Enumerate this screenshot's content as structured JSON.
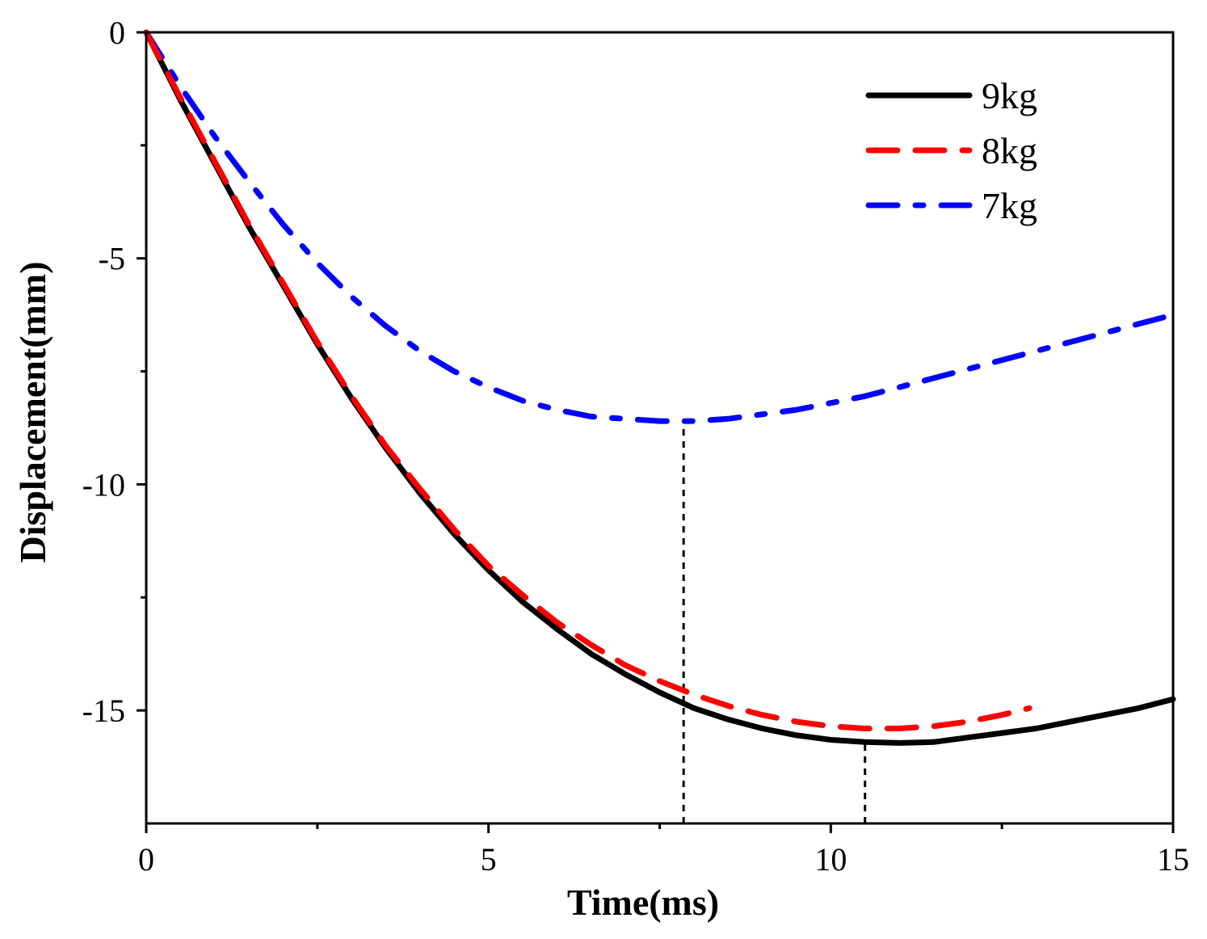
{
  "chart_data": {
    "type": "line",
    "title": "",
    "xlabel": "Time(ms)",
    "ylabel": "Displacement(mm)",
    "xlim": [
      0,
      15
    ],
    "ylim": [
      -17.5,
      0
    ],
    "xticks": [
      0,
      5,
      10,
      15
    ],
    "xtick_labels": [
      "0",
      "5",
      "10",
      "15"
    ],
    "x_minor_ticks": [
      2.5,
      7.5,
      12.5
    ],
    "yticks": [
      0,
      -5,
      -10,
      -15
    ],
    "ytick_labels": [
      "0",
      "-5",
      "-10",
      "-15"
    ],
    "y_minor_ticks": [
      -2.5,
      -7.5,
      -12.5
    ],
    "grid": false,
    "legend_position": "top-right",
    "series": [
      {
        "name": "9kg",
        "color": "#000000",
        "style": "solid",
        "x": [
          0,
          0.5,
          1,
          1.5,
          2,
          2.5,
          3,
          3.5,
          4,
          4.5,
          5,
          5.5,
          6,
          6.5,
          7,
          7.5,
          8,
          8.5,
          9,
          9.5,
          10,
          10.5,
          11,
          11.5,
          12,
          12.5,
          13,
          13.5,
          14,
          14.5,
          15
        ],
        "y": [
          0,
          -1.5,
          -2.9,
          -4.3,
          -5.6,
          -6.9,
          -8.1,
          -9.2,
          -10.2,
          -11.1,
          -11.9,
          -12.6,
          -13.2,
          -13.75,
          -14.2,
          -14.6,
          -14.95,
          -15.2,
          -15.4,
          -15.55,
          -15.65,
          -15.7,
          -15.72,
          -15.7,
          -15.6,
          -15.5,
          -15.4,
          -15.25,
          -15.1,
          -14.95,
          -14.75
        ]
      },
      {
        "name": "8kg",
        "color": "#ff0000",
        "style": "dashed",
        "x": [
          0,
          0.5,
          1,
          1.5,
          2,
          2.5,
          3,
          3.5,
          4,
          4.5,
          5,
          5.5,
          6,
          6.5,
          7,
          7.5,
          8,
          8.5,
          9,
          9.5,
          10,
          10.5,
          11,
          11.5,
          12,
          12.5,
          12.9
        ],
        "y": [
          0,
          -1.45,
          -2.85,
          -4.25,
          -5.55,
          -6.85,
          -8.05,
          -9.15,
          -10.1,
          -11.0,
          -11.8,
          -12.45,
          -13.05,
          -13.55,
          -14.0,
          -14.35,
          -14.65,
          -14.9,
          -15.1,
          -15.25,
          -15.35,
          -15.4,
          -15.4,
          -15.35,
          -15.25,
          -15.1,
          -14.95
        ]
      },
      {
        "name": "7kg",
        "color": "#0000ff",
        "style": "dashdot",
        "x": [
          0,
          0.5,
          1,
          1.5,
          2,
          2.5,
          3,
          3.5,
          4,
          4.5,
          5,
          5.5,
          6,
          6.5,
          7,
          7.5,
          8,
          8.5,
          9,
          9.5,
          10,
          10.5,
          11,
          11.5,
          12,
          12.5,
          13,
          13.5,
          14,
          14.5,
          15
        ],
        "y": [
          0,
          -1.2,
          -2.3,
          -3.3,
          -4.25,
          -5.1,
          -5.85,
          -6.5,
          -7.05,
          -7.5,
          -7.85,
          -8.15,
          -8.35,
          -8.5,
          -8.55,
          -8.6,
          -8.6,
          -8.55,
          -8.45,
          -8.35,
          -8.2,
          -8.05,
          -7.85,
          -7.65,
          -7.45,
          -7.25,
          -7.05,
          -6.85,
          -6.65,
          -6.45,
          -6.25
        ]
      }
    ],
    "reference_lines": [
      {
        "x": 7.85,
        "y_from": -17.5,
        "y_to": -8.6
      },
      {
        "x": 10.5,
        "y_from": -17.5,
        "y_to": -15.7
      }
    ]
  }
}
